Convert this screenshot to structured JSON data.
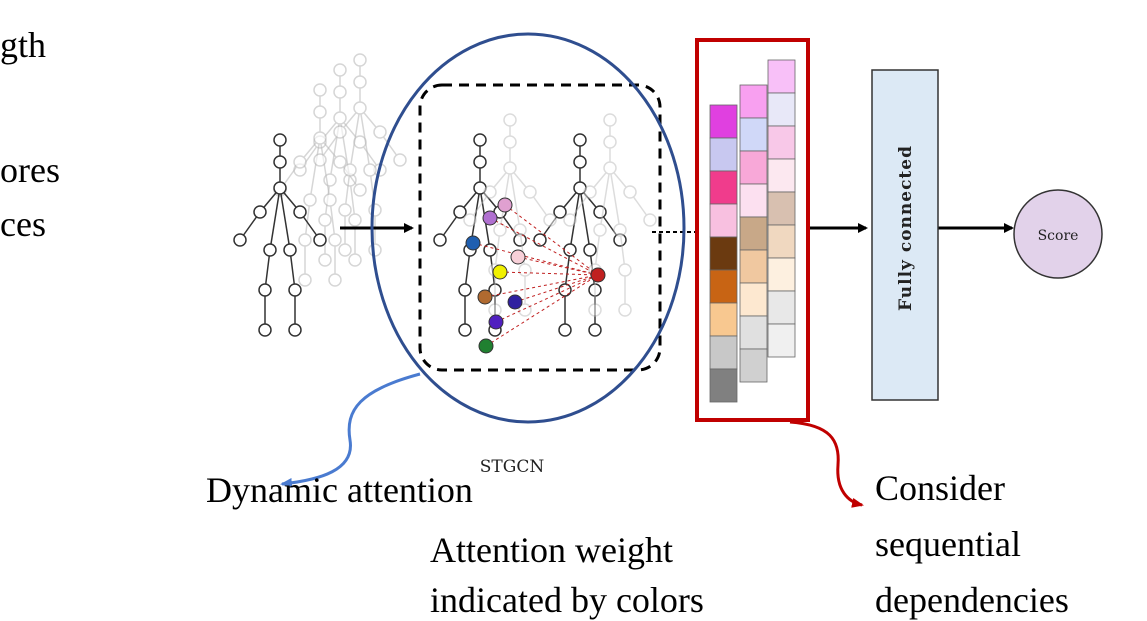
{
  "left_fragments": [
    "gth",
    "ores",
    "ces"
  ],
  "stgcn_label": "STGCN",
  "fc_label": "Fully connected",
  "score_label": "Score",
  "dynamic_attention": "Dynamic attention",
  "attention_weight": [
    "Attention weight",
    "indicated by colors"
  ],
  "sequential": [
    "Consider",
    "sequential",
    "dependencies"
  ]
}
